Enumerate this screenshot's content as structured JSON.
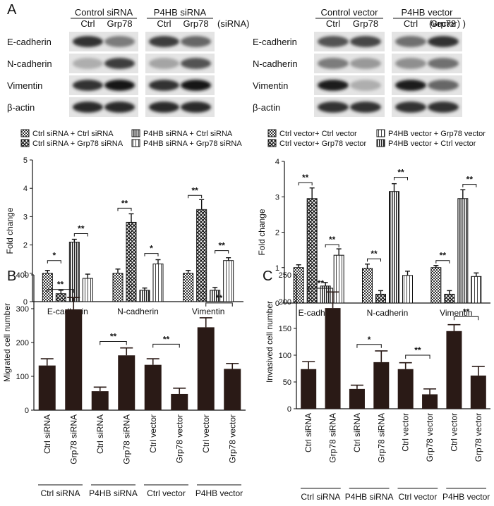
{
  "panels": {
    "a": "A",
    "b": "B",
    "c": "C"
  },
  "blot_left": {
    "group_headers": [
      "Control siRNA",
      "P4HB siRNA"
    ],
    "suffix": "(siRNA)",
    "lanes": [
      "Ctrl",
      "Grp78",
      "Ctrl",
      "Grp78"
    ],
    "rows": [
      "E-cadherin",
      "N-cadherin",
      "Vimentin",
      "β-actin"
    ],
    "intensity": [
      [
        0.85,
        0.5,
        0.8,
        0.6
      ],
      [
        0.25,
        0.8,
        0.3,
        0.7
      ],
      [
        0.85,
        1.0,
        0.85,
        1.0
      ],
      [
        0.9,
        0.9,
        0.9,
        0.9
      ]
    ]
  },
  "blot_right": {
    "group_headers": [
      "Control vector",
      "P4HB vector"
    ],
    "suffix": "(vector) )",
    "lanes": [
      "Ctrl",
      "Grp78",
      "Ctrl",
      "Grp78"
    ],
    "rows": [
      "E-cadherin",
      "N-cadherin",
      "Vimentin",
      "β-actin"
    ],
    "intensity": [
      [
        0.7,
        0.75,
        0.55,
        0.85
      ],
      [
        0.5,
        0.35,
        0.4,
        0.55
      ],
      [
        0.95,
        0.25,
        0.95,
        0.6
      ],
      [
        0.85,
        0.85,
        0.85,
        0.85
      ]
    ]
  },
  "chart_data": [
    {
      "id": "a_left",
      "type": "bar",
      "categories": [
        "E-cadherin",
        "N-cadherin",
        "Vimentin"
      ],
      "ylabel": "Fold change",
      "ylim": [
        0,
        5
      ],
      "yticks": [
        0,
        1,
        2,
        3,
        4,
        5
      ],
      "legend": "top",
      "series": [
        {
          "name": "Ctrl siRNA + Ctrl siRNA",
          "values": [
            1.0,
            1.0,
            1.0
          ],
          "errors": [
            0.1,
            0.15,
            0.1
          ]
        },
        {
          "name": "Ctrl siRNA + Grp78 siRNA",
          "values": [
            0.28,
            2.8,
            3.25
          ],
          "errors": [
            0.12,
            0.3,
            0.35
          ]
        },
        {
          "name": "P4HB siRNA + Ctrl siRNA",
          "values": [
            2.1,
            0.4,
            0.4
          ],
          "errors": [
            0.1,
            0.08,
            0.1
          ]
        },
        {
          "name": "P4HB siRNA + Grp78 siRNA",
          "values": [
            0.82,
            1.33,
            1.45
          ],
          "errors": [
            0.15,
            0.15,
            0.1
          ]
        }
      ],
      "significance": [
        {
          "category": 0,
          "from": 0,
          "to": 1,
          "y": 1.45,
          "label": "*"
        },
        {
          "category": 0,
          "from": 2,
          "to": 3,
          "y": 2.4,
          "label": "**"
        },
        {
          "category": 1,
          "from": 0,
          "to": 1,
          "y": 3.3,
          "label": "**"
        },
        {
          "category": 1,
          "from": 2,
          "to": 3,
          "y": 1.7,
          "label": "*"
        },
        {
          "category": 2,
          "from": 0,
          "to": 1,
          "y": 3.75,
          "label": "**"
        },
        {
          "category": 2,
          "from": 2,
          "to": 3,
          "y": 1.8,
          "label": "**"
        }
      ]
    },
    {
      "id": "a_right",
      "type": "bar",
      "categories": [
        "E-cadherin",
        "N-cadherin",
        "Vimentin"
      ],
      "ylabel": "Fold change",
      "ylim": [
        0,
        4
      ],
      "yticks": [
        0,
        1,
        2,
        3,
        4
      ],
      "legend": "top",
      "series": [
        {
          "name": "Ctrl vector+ Ctrl vector",
          "values": [
            1.0,
            0.98,
            1.0
          ],
          "errors": [
            0.08,
            0.12,
            0.06
          ]
        },
        {
          "name": "Ctrl vector+ Grp78 vector",
          "values": [
            2.95,
            0.25,
            0.25
          ],
          "errors": [
            0.3,
            0.1,
            0.1
          ]
        },
        {
          "name": "P4HB vector + Ctrl vector",
          "values": [
            0.48,
            3.15,
            2.95
          ],
          "errors": [
            0.1,
            0.22,
            0.25
          ]
        },
        {
          "name": "P4HB vector + Grp78 vector",
          "values": [
            1.35,
            0.78,
            0.75
          ],
          "errors": [
            0.18,
            0.12,
            0.1
          ]
        }
      ],
      "legend_order": [
        0,
        1,
        3,
        2
      ],
      "significance": [
        {
          "category": 0,
          "from": 0,
          "to": 1,
          "y": 3.4,
          "label": "**"
        },
        {
          "category": 0,
          "from": 2,
          "to": 3,
          "y": 1.65,
          "label": "**"
        },
        {
          "category": 1,
          "from": 0,
          "to": 1,
          "y": 1.25,
          "label": "**"
        },
        {
          "category": 1,
          "from": 2,
          "to": 3,
          "y": 3.55,
          "label": "**"
        },
        {
          "category": 2,
          "from": 0,
          "to": 1,
          "y": 1.2,
          "label": "**"
        },
        {
          "category": 2,
          "from": 2,
          "to": 3,
          "y": 3.35,
          "label": "**"
        }
      ]
    },
    {
      "id": "b",
      "type": "bar",
      "ylabel": "Migrated cell number",
      "ylim": [
        0,
        400
      ],
      "yticks": [
        0,
        100,
        200,
        300,
        400
      ],
      "bars": [
        {
          "label": "Ctrl siRNA",
          "value": 132,
          "error": 20
        },
        {
          "label": "Grp78 siRNA",
          "value": 298,
          "error": 35
        },
        {
          "label": "Ctrl siRNA",
          "value": 56,
          "error": 12
        },
        {
          "label": "Grp78 siRNA",
          "value": 162,
          "error": 22
        },
        {
          "label": "Ctrl vector",
          "value": 134,
          "error": 18
        },
        {
          "label": "Grp78 vector",
          "value": 48,
          "error": 17
        },
        {
          "label": "Ctrl vector",
          "value": 245,
          "error": 28
        },
        {
          "label": "Grp78 vector",
          "value": 122,
          "error": 16
        }
      ],
      "groups": [
        "Ctrl siRNA",
        "P4HB siRNA",
        "Ctrl vector",
        "P4HB vector"
      ],
      "significance": [
        {
          "from": 0,
          "to": 1,
          "y": 357,
          "label": "**"
        },
        {
          "from": 2,
          "to": 3,
          "y": 203,
          "label": "**"
        },
        {
          "from": 4,
          "to": 5,
          "y": 195,
          "label": "**"
        },
        {
          "from": 6,
          "to": 7,
          "y": 317,
          "label": "**"
        }
      ]
    },
    {
      "id": "c",
      "type": "bar",
      "ylabel": "Invasived cell number",
      "ylim": [
        0,
        250
      ],
      "yticks": [
        0,
        50,
        100,
        150,
        200,
        250
      ],
      "bars": [
        {
          "label": "Ctrl siRNA",
          "value": 74,
          "error": 14
        },
        {
          "label": "Grp78 siRNA",
          "value": 188,
          "error": 30
        },
        {
          "label": "Ctrl siRNA",
          "value": 37,
          "error": 7
        },
        {
          "label": "Grp78 siRNA",
          "value": 87,
          "error": 21
        },
        {
          "label": "Ctrl vector",
          "value": 74,
          "error": 12
        },
        {
          "label": "Grp78 vector",
          "value": 27,
          "error": 10
        },
        {
          "label": "Ctrl vector",
          "value": 145,
          "error": 12
        },
        {
          "label": "Grp78 vector",
          "value": 62,
          "error": 17
        }
      ],
      "groups": [
        "Ctrl siRNA",
        "P4HB siRNA",
        "Ctrl vector",
        "P4HB vector"
      ],
      "significance": [
        {
          "from": 0,
          "to": 1,
          "y": 225,
          "label": "**"
        },
        {
          "from": 2,
          "to": 3,
          "y": 120,
          "label": "*"
        },
        {
          "from": 4,
          "to": 5,
          "y": 100,
          "label": "**"
        },
        {
          "from": 6,
          "to": 7,
          "y": 172,
          "label": "**"
        }
      ]
    }
  ]
}
